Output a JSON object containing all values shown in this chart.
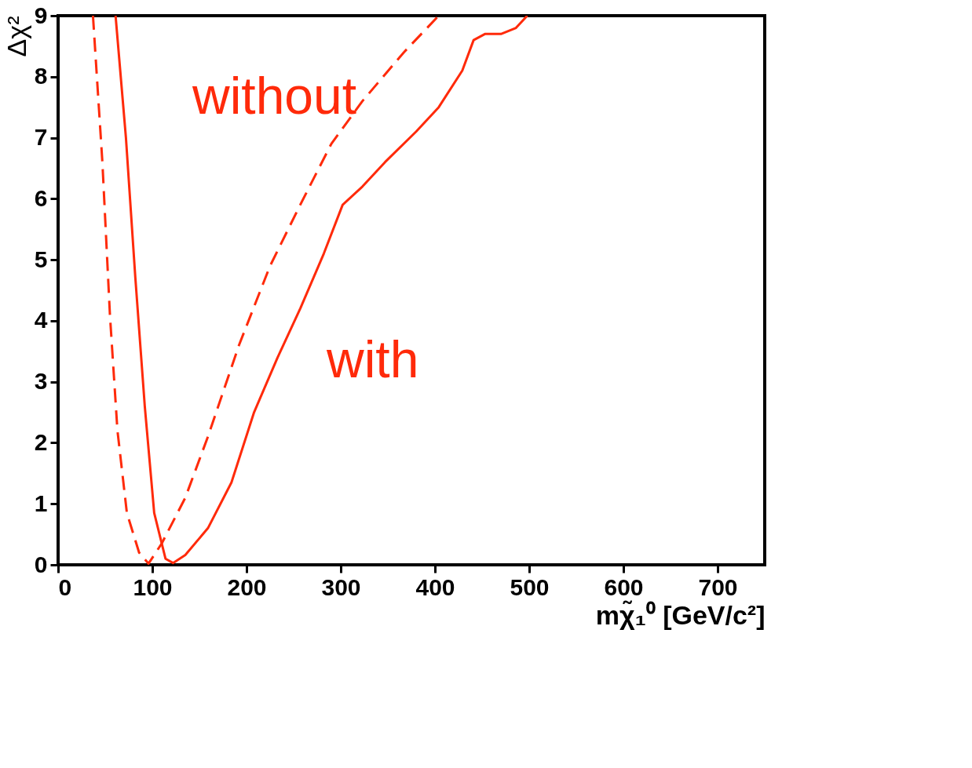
{
  "chart_data": {
    "type": "line",
    "xlabel": "mχ̃₁⁰ [GeV/c²]",
    "ylabel": "Δχ²",
    "xlim": [
      0,
      750
    ],
    "ylim": [
      0,
      9
    ],
    "xticks": [
      0,
      100,
      200,
      300,
      400,
      500,
      600,
      700
    ],
    "yticks": [
      0,
      1,
      2,
      3,
      4,
      5,
      6,
      7,
      8,
      9
    ],
    "grid": false,
    "series": [
      {
        "name": "with",
        "color": "#ff2a0a",
        "line_style": "solid",
        "x": [
          61,
          72,
          82,
          92,
          102,
          114,
          122,
          135,
          159,
          184,
          208,
          233,
          257,
          282,
          302,
          323,
          347,
          380,
          404,
          429,
          441,
          453,
          470,
          486,
          498
        ],
        "values": [
          9,
          7,
          4.7,
          2.6,
          0.85,
          0.1,
          0.03,
          0.16,
          0.6,
          1.35,
          2.5,
          3.4,
          4.2,
          5.1,
          5.9,
          6.2,
          6.6,
          7.1,
          7.5,
          8.1,
          8.6,
          8.7,
          8.7,
          8.8,
          9
        ]
      },
      {
        "name": "without",
        "color": "#ff2a0a",
        "line_style": "dashed",
        "x": [
          37,
          47,
          55,
          63,
          73,
          86,
          96,
          110,
          135,
          159,
          192,
          225,
          257,
          290,
          323,
          367,
          404
        ],
        "values": [
          9,
          6.6,
          4.1,
          2.2,
          0.85,
          0.2,
          0.02,
          0.35,
          1.1,
          2.1,
          3.6,
          4.9,
          5.9,
          6.9,
          7.6,
          8.4,
          9
        ]
      }
    ]
  }
}
